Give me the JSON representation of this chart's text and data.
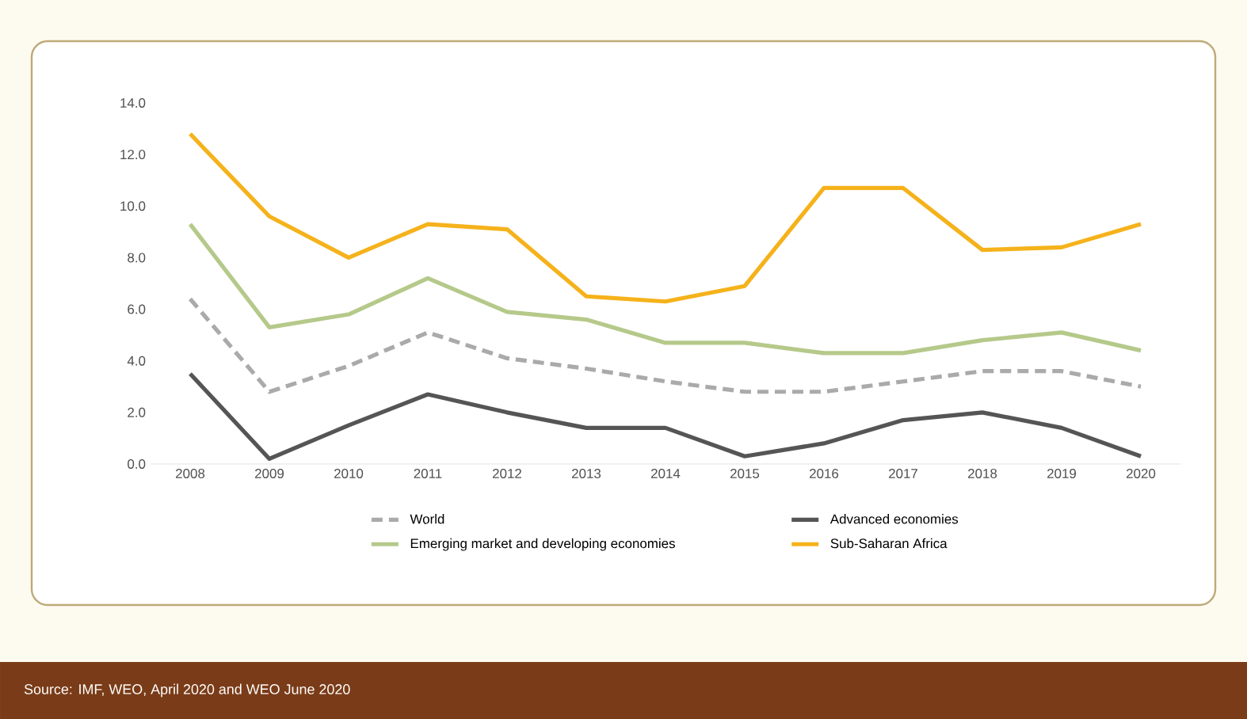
{
  "chart_data": {
    "type": "line",
    "categories": [
      "2008",
      "2009",
      "2010",
      "2011",
      "2012",
      "2013",
      "2014",
      "2015",
      "2016",
      "2017",
      "2018",
      "2019",
      "2020"
    ],
    "series": [
      {
        "name": "World",
        "color": "#aaaaaa",
        "line_style": "dashed",
        "values": [
          6.4,
          2.8,
          3.8,
          5.1,
          4.1,
          3.7,
          3.2,
          2.8,
          2.8,
          3.2,
          3.6,
          3.6,
          3.0
        ]
      },
      {
        "name": "Advanced economies",
        "color": "#555555",
        "line_style": "solid",
        "values": [
          3.5,
          0.2,
          1.5,
          2.7,
          2.0,
          1.4,
          1.4,
          0.3,
          0.8,
          1.7,
          2.0,
          1.4,
          0.3
        ]
      },
      {
        "name": "Emerging market and developing economies",
        "color": "#b5c98a",
        "line_style": "solid",
        "values": [
          9.3,
          5.3,
          5.8,
          7.2,
          5.9,
          5.6,
          4.7,
          4.7,
          4.3,
          4.3,
          4.8,
          5.1,
          4.4
        ]
      },
      {
        "name": "Sub-Saharan Africa",
        "color": "#f5b21b",
        "line_style": "solid",
        "values": [
          12.8,
          9.6,
          8.0,
          9.3,
          9.1,
          6.5,
          6.3,
          6.9,
          10.7,
          10.7,
          8.3,
          8.4,
          9.3
        ]
      }
    ],
    "ylim": [
      0,
      14
    ],
    "yticks": [
      {
        "value": 0,
        "label": "0.0"
      },
      {
        "value": 2,
        "label": "2.0"
      },
      {
        "value": 4,
        "label": "4.0"
      },
      {
        "value": 6,
        "label": "6.0"
      },
      {
        "value": 8,
        "label": "8.0"
      },
      {
        "value": 10,
        "label": "10.0"
      },
      {
        "value": 12,
        "label": "12.0"
      },
      {
        "value": 14,
        "label": "14.0"
      }
    ],
    "grid": false,
    "legend": "bottom",
    "annotations": [
      "Source: IMF, WEO, April 2020 and WEO June 2020"
    ]
  }
}
